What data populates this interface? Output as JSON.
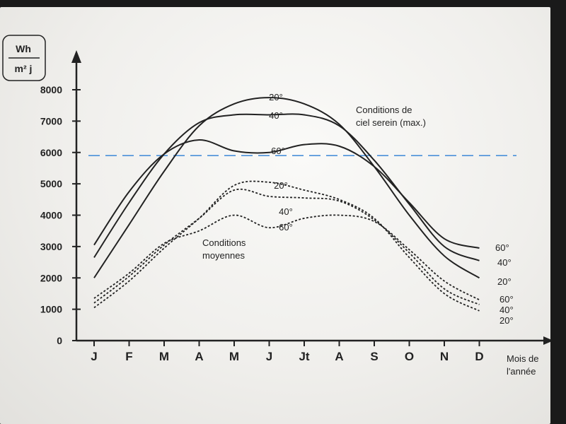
{
  "chart_data": {
    "type": "line",
    "ylabel_numerator": "Wh",
    "ylabel_denominator": "m² j",
    "xlabel_line1": "Mois de",
    "xlabel_line2": "l'année",
    "ylim": [
      0,
      8000
    ],
    "yticks": [
      0,
      1000,
      2000,
      3000,
      4000,
      5000,
      6000,
      7000,
      8000
    ],
    "ytick_labels": [
      "0",
      "1000",
      "2000",
      "3000",
      "4000",
      "5000",
      "6000",
      "7000",
      "8000"
    ],
    "categories": [
      "J",
      "F",
      "M",
      "A",
      "M",
      "J",
      "Jt",
      "A",
      "S",
      "O",
      "N",
      "D"
    ],
    "reference_line": {
      "value": 5900,
      "style": "dashed",
      "color": "#4a90d9"
    },
    "annotations": [
      {
        "lines": [
          "Conditions de",
          "ciel serein (max.)"
        ],
        "near": "top-right"
      },
      {
        "lines": [
          "Conditions",
          "moyennes"
        ],
        "near": "center-left"
      }
    ],
    "series": [
      {
        "name": "20°",
        "group": "max",
        "style": "solid",
        "values": [
          2000,
          3700,
          5400,
          6850,
          7550,
          7750,
          7550,
          6900,
          5550,
          4000,
          2700,
          2000
        ],
        "start_label": "",
        "end_label": "20°",
        "peak_label": "20°"
      },
      {
        "name": "40°",
        "group": "max",
        "style": "solid",
        "values": [
          2650,
          4400,
          5950,
          6950,
          7200,
          7200,
          7200,
          6850,
          5750,
          4350,
          3000,
          2550
        ],
        "start_label": "",
        "end_label": "40°",
        "peak_label": "40°"
      },
      {
        "name": "60°",
        "group": "max",
        "style": "solid",
        "values": [
          3050,
          4750,
          5950,
          6400,
          6050,
          6000,
          6250,
          6200,
          5550,
          4400,
          3250,
          2950
        ],
        "start_label": "",
        "end_label": "60°",
        "peak_label": "60°"
      },
      {
        "name": "20°",
        "group": "moyennes",
        "style": "dotted",
        "values": [
          1050,
          1900,
          2950,
          3900,
          4950,
          5050,
          4800,
          4500,
          3900,
          2650,
          1500,
          950
        ],
        "start_label": "",
        "end_label": "20°",
        "peak_label": "20°"
      },
      {
        "name": "40°",
        "group": "moyennes",
        "style": "dotted",
        "values": [
          1200,
          2050,
          3050,
          3900,
          4800,
          4600,
          4550,
          4450,
          3850,
          2800,
          1650,
          1150
        ],
        "start_label": "",
        "end_label": "40°",
        "peak_label": "40°"
      },
      {
        "name": "60°",
        "group": "moyennes",
        "style": "dotted",
        "values": [
          1350,
          2150,
          3100,
          3500,
          4000,
          3600,
          3900,
          4000,
          3800,
          2900,
          1900,
          1300
        ],
        "start_label": "",
        "end_label": "60°",
        "peak_label": "60°"
      }
    ]
  }
}
